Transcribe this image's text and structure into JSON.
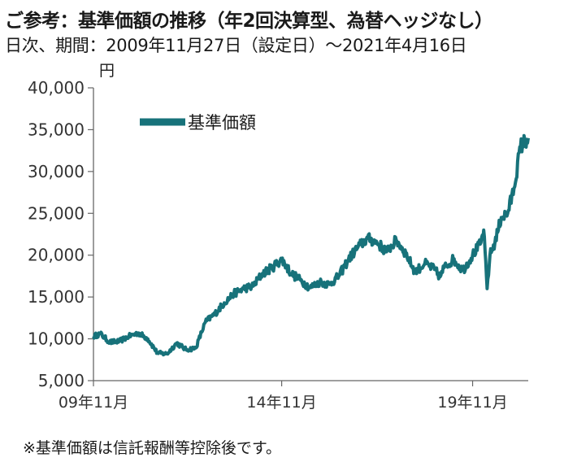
{
  "header": {
    "title": "ご参考：基準価額の推移（年2回決算型、為替ヘッジなし）",
    "subtitle": "日次、期間：2009年11月27日（設定日）～2021年4月16日"
  },
  "footnote": "※基準価額は信託報酬等控除後です。",
  "chart_data": {
    "type": "line",
    "title": "",
    "xlabel": "",
    "ylabel": "円",
    "ylim": [
      5000,
      40000
    ],
    "xlim": [
      "2009-11-27",
      "2021-04-16"
    ],
    "yticks": [
      5000,
      10000,
      15000,
      20000,
      25000,
      30000,
      35000,
      40000
    ],
    "ytick_labels": [
      "5,000",
      "10,000",
      "15,000",
      "20,000",
      "25,000",
      "30,000",
      "35,000",
      "40,000"
    ],
    "xticks": [
      "2009-11-27",
      "2014-11-01",
      "2019-11-01"
    ],
    "xtick_labels": [
      "09年11月",
      "14年11月",
      "19年11月"
    ],
    "grid": false,
    "legend": "top-left",
    "line_color": "#17727a",
    "series": [
      {
        "name": "基準価額",
        "x": [
          "2009-11-27",
          "2010-02-01",
          "2010-05-01",
          "2010-08-01",
          "2010-11-01",
          "2011-02-01",
          "2011-05-01",
          "2011-08-01",
          "2011-11-01",
          "2012-02-01",
          "2012-05-01",
          "2012-08-01",
          "2012-11-01",
          "2013-02-01",
          "2013-05-01",
          "2013-08-01",
          "2013-11-01",
          "2014-02-01",
          "2014-05-01",
          "2014-08-01",
          "2014-11-01",
          "2015-02-01",
          "2015-05-01",
          "2015-08-01",
          "2015-11-01",
          "2016-02-01",
          "2016-05-01",
          "2016-08-01",
          "2016-11-01",
          "2017-02-01",
          "2017-05-01",
          "2017-08-01",
          "2017-11-01",
          "2018-02-01",
          "2018-05-01",
          "2018-08-01",
          "2018-11-01",
          "2018-12-25",
          "2019-02-01",
          "2019-05-01",
          "2019-08-01",
          "2019-11-01",
          "2020-01-20",
          "2020-02-15",
          "2020-03-19",
          "2020-04-15",
          "2020-06-01",
          "2020-08-01",
          "2020-10-01",
          "2020-12-01",
          "2021-02-01",
          "2021-04-16"
        ],
        "values": [
          10300,
          10600,
          9600,
          9700,
          10300,
          10700,
          10000,
          8300,
          8200,
          9500,
          8700,
          8900,
          12000,
          13000,
          14300,
          15400,
          16000,
          16300,
          17800,
          18500,
          19500,
          17800,
          17000,
          16100,
          16800,
          16500,
          17500,
          19500,
          21000,
          22000,
          21500,
          20400,
          21800,
          20200,
          18000,
          19000,
          18300,
          17400,
          18500,
          19500,
          18200,
          20000,
          21500,
          23000,
          16000,
          20000,
          21500,
          24500,
          25000,
          28000,
          33000,
          34000
        ]
      }
    ]
  }
}
